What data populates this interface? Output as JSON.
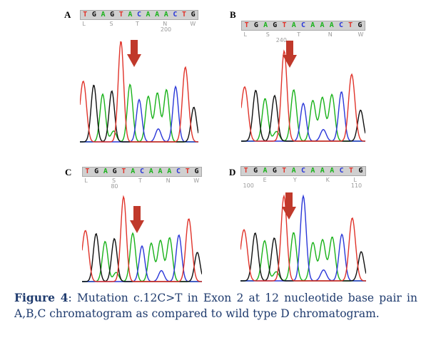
{
  "base_colors": {
    "A": "#19b21a",
    "C": "#2a37d8",
    "G": "#101010",
    "T": "#e0332a"
  },
  "arrow_color": "#c0392b",
  "panels": [
    {
      "letter": "A",
      "bases": [
        "T",
        "G",
        "A",
        "G",
        "T",
        "A",
        "C",
        "A",
        "A",
        "A",
        "C",
        "T",
        "G"
      ],
      "sub": [
        {
          "text": "L",
          "pos": 0.02
        },
        {
          "text": "S",
          "pos": 0.25
        },
        {
          "text": "T",
          "pos": 0.47
        },
        {
          "text": "N",
          "pos": 0.7
        },
        {
          "text": "200",
          "pos": 0.68,
          "row": 1
        },
        {
          "text": "W",
          "pos": 0.93
        }
      ]
    },
    {
      "letter": "B",
      "bases": [
        "T",
        "G",
        "A",
        "G",
        "T",
        "A",
        "C",
        "A",
        "A",
        "A",
        "C",
        "T",
        "G"
      ],
      "sub": [
        {
          "text": "L",
          "pos": 0.02
        },
        {
          "text": "S",
          "pos": 0.2
        },
        {
          "text": "240",
          "pos": 0.28,
          "row": 1
        },
        {
          "text": "T",
          "pos": 0.45
        },
        {
          "text": "N",
          "pos": 0.7
        },
        {
          "text": "W",
          "pos": 0.94
        }
      ]
    },
    {
      "letter": "C",
      "bases": [
        "T",
        "G",
        "A",
        "G",
        "T",
        "A",
        "C",
        "A",
        "A",
        "A",
        "C",
        "T",
        "G"
      ],
      "sub": [
        {
          "text": "L",
          "pos": 0.02
        },
        {
          "text": "S",
          "pos": 0.25
        },
        {
          "text": "80",
          "pos": 0.24,
          "row": 1
        },
        {
          "text": "T",
          "pos": 0.47
        },
        {
          "text": "N",
          "pos": 0.7
        },
        {
          "text": "W",
          "pos": 0.93
        }
      ]
    },
    {
      "letter": "D",
      "bases": [
        "T",
        "G",
        "A",
        "G",
        "T",
        "A",
        "C",
        "A",
        "A",
        "A",
        "C",
        "T",
        "G"
      ],
      "sub": [
        {
          "text": "100",
          "pos": 0.02,
          "row": 1
        },
        {
          "text": "E",
          "pos": 0.18
        },
        {
          "text": "Y",
          "pos": 0.42
        },
        {
          "text": "K",
          "pos": 0.68
        },
        {
          "text": "L",
          "pos": 0.9
        },
        {
          "text": "110",
          "pos": 0.88,
          "row": 1
        }
      ]
    }
  ],
  "caption": {
    "label": "Figure 4",
    "text": ": Mutation c.12C>T in Exon 2 at 12 nucleotide base pair in A,B,C chromatogram as compared to wild type D chromatogram."
  }
}
